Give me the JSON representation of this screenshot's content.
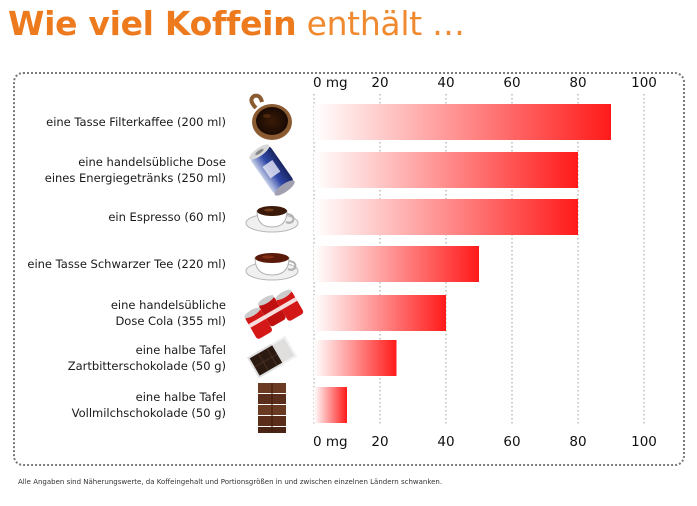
{
  "title": {
    "bold": "Wie viel Koffein",
    "rest": "enthält …"
  },
  "footnote": "Alle Angaben sind Näherungswerte, da Koffeingehalt und Portionsgrößen in und zwischen einzelnen Ländern schwanken.",
  "colors": {
    "title": "#ee7a1e",
    "bar_start": "#ffffff",
    "bar_end": "#ff1a1a",
    "frame": "#7a7a7a"
  },
  "chart_data": {
    "type": "bar",
    "orientation": "horizontal",
    "categories": [
      [
        "eine Tasse Filterkaffee (200 ml)"
      ],
      [
        "eine handelsübliche Dose",
        "eines Energiegetränks (250 ml)"
      ],
      [
        "ein Espresso (60 ml)"
      ],
      [
        "eine Tasse Schwarzer Tee (220 ml)"
      ],
      [
        "eine handelsübliche",
        "Dose Cola (355 ml)"
      ],
      [
        "eine halbe Tafel",
        "Zartbitterschokolade (50 g)"
      ],
      [
        "eine halbe Tafel",
        "Vollmilchschokolade (50 g)"
      ]
    ],
    "icons": [
      "coffee-mug-icon",
      "energy-drink-can-icon",
      "espresso-cup-icon",
      "tea-cup-icon",
      "cola-cans-icon",
      "dark-chocolate-icon",
      "milk-chocolate-icon"
    ],
    "values": [
      90,
      80,
      80,
      50,
      40,
      25,
      10
    ],
    "xlim": [
      0,
      100
    ],
    "ticks": [
      0,
      20,
      40,
      60,
      80,
      100
    ],
    "tick_labels": [
      "0 mg",
      "20",
      "40",
      "60",
      "80",
      "100"
    ],
    "unit": "mg",
    "grid": true,
    "axis_positions": [
      "top",
      "bottom"
    ]
  }
}
